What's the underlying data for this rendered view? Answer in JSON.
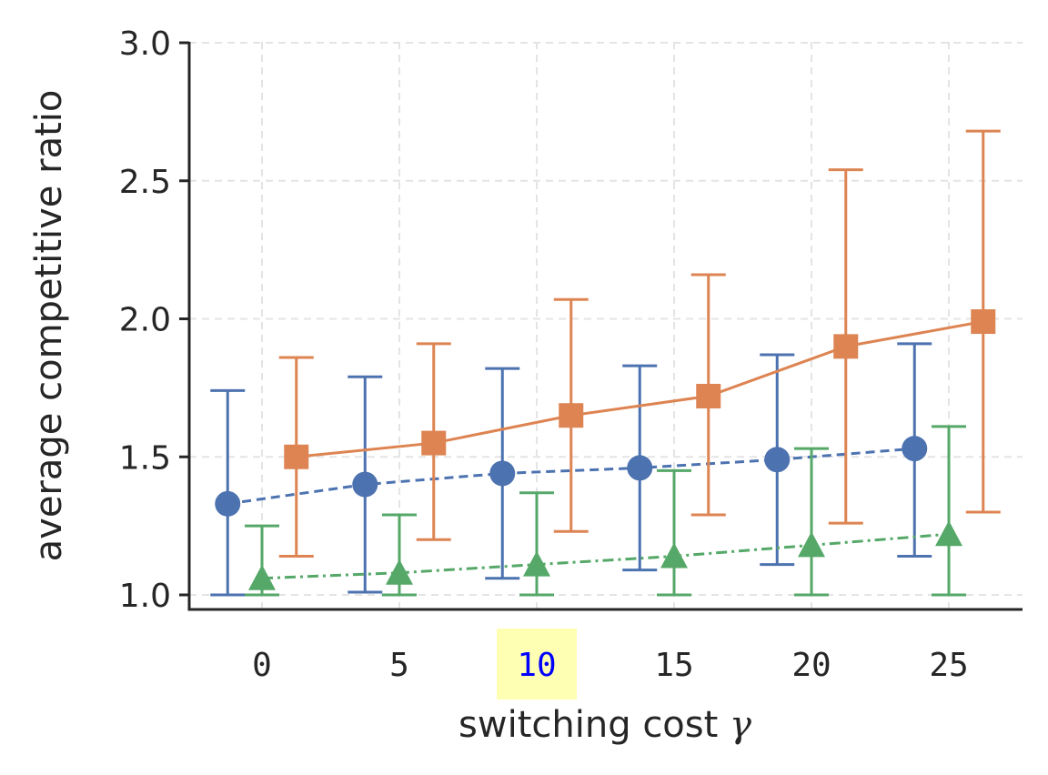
{
  "chart_data": {
    "type": "scatter",
    "title": "",
    "xlabel": "switching cost",
    "xlabel_symbol": "γ",
    "ylabel": "average competitive ratio",
    "x_ticks": [
      "0",
      "5",
      "10",
      "15",
      "20",
      "25"
    ],
    "x_tick_values": [
      0,
      5,
      10,
      15,
      20,
      25
    ],
    "highlighted_x_tick": "10",
    "highlight_color": "#ffffb3",
    "y_ticks": [
      "1.0",
      "1.5",
      "2.0",
      "2.5",
      "3.0"
    ],
    "y_tick_values": [
      1.0,
      1.5,
      2.0,
      2.5,
      3.0
    ],
    "xlim": [
      -2.7,
      27.8
    ],
    "ylim": [
      0.95,
      3.0
    ],
    "grid": true,
    "series": [
      {
        "name": "blue",
        "color": "#4c72b0",
        "marker": "circle",
        "linestyle": "dashed",
        "x": [
          -1.25,
          3.75,
          8.75,
          13.75,
          18.75,
          23.75
        ],
        "y": [
          1.33,
          1.4,
          1.44,
          1.46,
          1.49,
          1.53
        ],
        "err_low": [
          1.0,
          1.01,
          1.06,
          1.09,
          1.11,
          1.14
        ],
        "err_high": [
          1.74,
          1.79,
          1.82,
          1.83,
          1.87,
          1.91
        ]
      },
      {
        "name": "orange",
        "color": "#dd8452",
        "marker": "square",
        "linestyle": "solid",
        "x": [
          1.25,
          6.25,
          11.25,
          16.25,
          21.25,
          26.25
        ],
        "y": [
          1.5,
          1.55,
          1.65,
          1.72,
          1.9,
          1.99
        ],
        "err_low": [
          1.14,
          1.2,
          1.23,
          1.29,
          1.26,
          1.3
        ],
        "err_high": [
          1.86,
          1.91,
          2.07,
          2.16,
          2.54,
          2.68
        ]
      },
      {
        "name": "green",
        "color": "#55a868",
        "marker": "triangle",
        "linestyle": "dashdot",
        "x": [
          0,
          5,
          10,
          15,
          20,
          25
        ],
        "y": [
          1.06,
          1.08,
          1.11,
          1.14,
          1.18,
          1.22
        ],
        "err_low": [
          1.0,
          1.0,
          1.0,
          1.0,
          1.0,
          1.0
        ],
        "err_high": [
          1.25,
          1.29,
          1.37,
          1.45,
          1.53,
          1.61
        ]
      }
    ]
  }
}
